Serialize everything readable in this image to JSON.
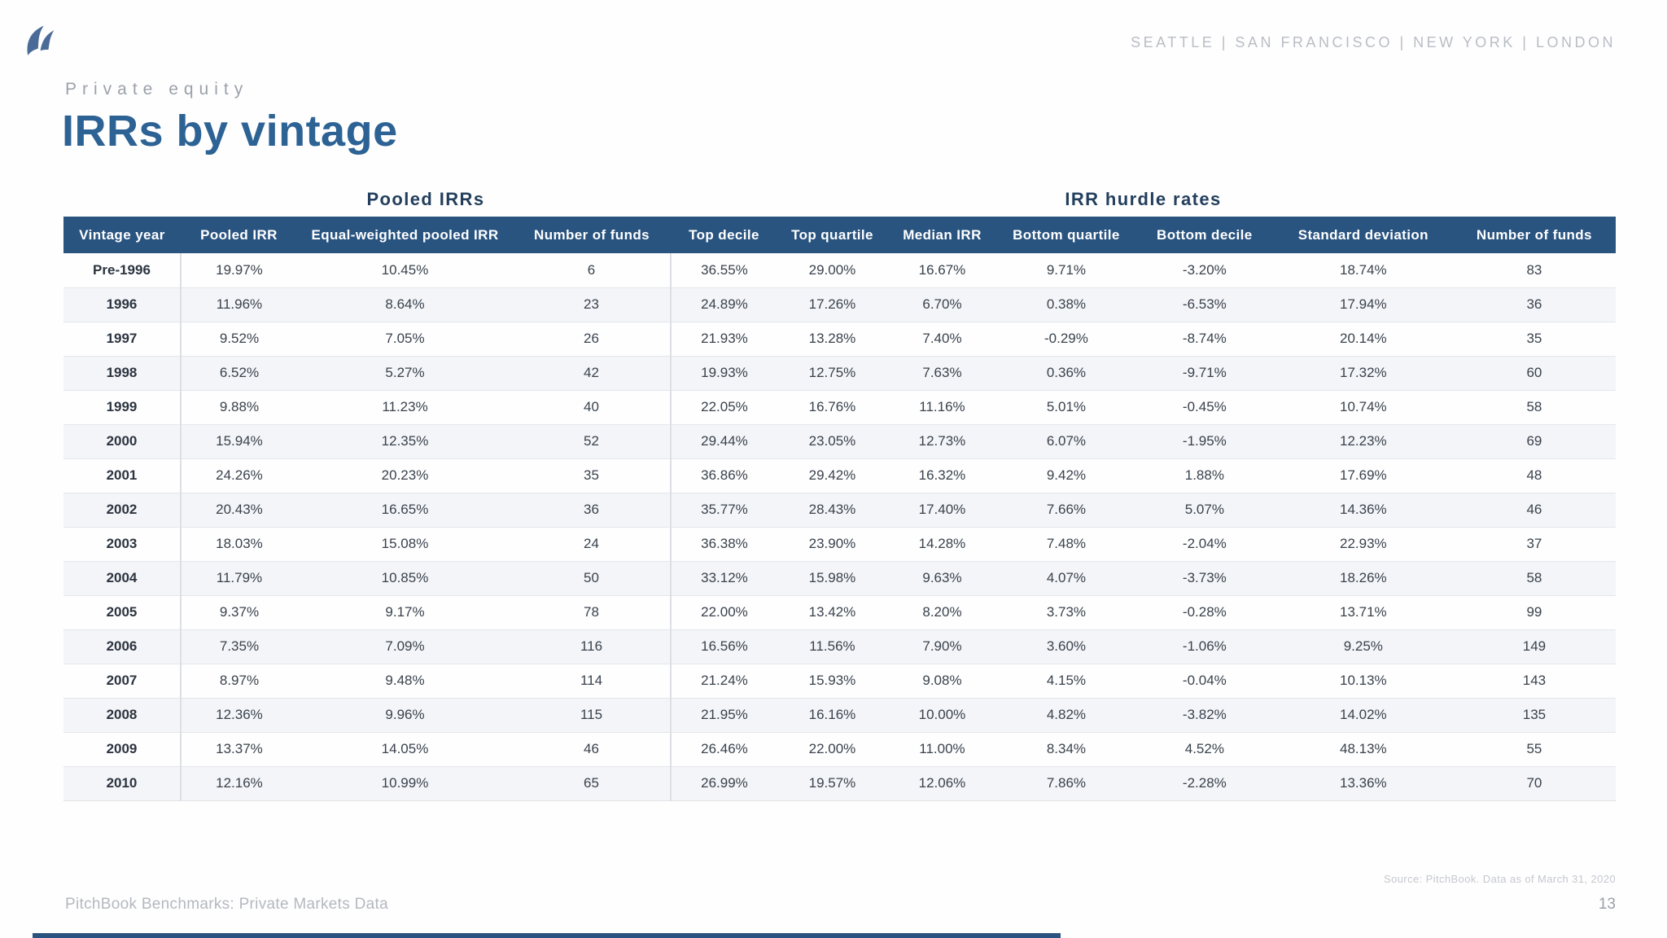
{
  "brand": {
    "logo": "pitchbook-sail-logo",
    "cities": [
      "SEATTLE",
      "SAN FRANCISCO",
      "NEW YORK",
      "LONDON"
    ],
    "city_separator": "|"
  },
  "eyebrow": "Private equity",
  "title": "IRRs by vintage",
  "table": {
    "group_headers": [
      {
        "label": "Pooled IRRs"
      },
      {
        "label": "IRR hurdle rates"
      }
    ],
    "columns": [
      "Vintage year",
      "Pooled IRR",
      "Equal-weighted pooled IRR",
      "Number of funds",
      "Top decile",
      "Top quartile",
      "Median IRR",
      "Bottom quartile",
      "Bottom decile",
      "Standard deviation",
      "Number of funds"
    ],
    "rows": [
      [
        "Pre-1996",
        "19.97%",
        "10.45%",
        "6",
        "36.55%",
        "29.00%",
        "16.67%",
        "9.71%",
        "-3.20%",
        "18.74%",
        "83"
      ],
      [
        "1996",
        "11.96%",
        "8.64%",
        "23",
        "24.89%",
        "17.26%",
        "6.70%",
        "0.38%",
        "-6.53%",
        "17.94%",
        "36"
      ],
      [
        "1997",
        "9.52%",
        "7.05%",
        "26",
        "21.93%",
        "13.28%",
        "7.40%",
        "-0.29%",
        "-8.74%",
        "20.14%",
        "35"
      ],
      [
        "1998",
        "6.52%",
        "5.27%",
        "42",
        "19.93%",
        "12.75%",
        "7.63%",
        "0.36%",
        "-9.71%",
        "17.32%",
        "60"
      ],
      [
        "1999",
        "9.88%",
        "11.23%",
        "40",
        "22.05%",
        "16.76%",
        "11.16%",
        "5.01%",
        "-0.45%",
        "10.74%",
        "58"
      ],
      [
        "2000",
        "15.94%",
        "12.35%",
        "52",
        "29.44%",
        "23.05%",
        "12.73%",
        "6.07%",
        "-1.95%",
        "12.23%",
        "69"
      ],
      [
        "2001",
        "24.26%",
        "20.23%",
        "35",
        "36.86%",
        "29.42%",
        "16.32%",
        "9.42%",
        "1.88%",
        "17.69%",
        "48"
      ],
      [
        "2002",
        "20.43%",
        "16.65%",
        "36",
        "35.77%",
        "28.43%",
        "17.40%",
        "7.66%",
        "5.07%",
        "14.36%",
        "46"
      ],
      [
        "2003",
        "18.03%",
        "15.08%",
        "24",
        "36.38%",
        "23.90%",
        "14.28%",
        "7.48%",
        "-2.04%",
        "22.93%",
        "37"
      ],
      [
        "2004",
        "11.79%",
        "10.85%",
        "50",
        "33.12%",
        "15.98%",
        "9.63%",
        "4.07%",
        "-3.73%",
        "18.26%",
        "58"
      ],
      [
        "2005",
        "9.37%",
        "9.17%",
        "78",
        "22.00%",
        "13.42%",
        "8.20%",
        "3.73%",
        "-0.28%",
        "13.71%",
        "99"
      ],
      [
        "2006",
        "7.35%",
        "7.09%",
        "116",
        "16.56%",
        "11.56%",
        "7.90%",
        "3.60%",
        "-1.06%",
        "9.25%",
        "149"
      ],
      [
        "2007",
        "8.97%",
        "9.48%",
        "114",
        "21.24%",
        "15.93%",
        "9.08%",
        "4.15%",
        "-0.04%",
        "10.13%",
        "143"
      ],
      [
        "2008",
        "12.36%",
        "9.96%",
        "115",
        "21.95%",
        "16.16%",
        "10.00%",
        "4.82%",
        "-3.82%",
        "14.02%",
        "135"
      ],
      [
        "2009",
        "13.37%",
        "14.05%",
        "46",
        "26.46%",
        "22.00%",
        "11.00%",
        "8.34%",
        "4.52%",
        "48.13%",
        "55"
      ],
      [
        "2010",
        "12.16%",
        "10.99%",
        "65",
        "26.99%",
        "19.57%",
        "12.06%",
        "7.86%",
        "-2.28%",
        "13.36%",
        "70"
      ]
    ]
  },
  "footer": {
    "source": "Source: PitchBook. Data as of March 31, 2020",
    "left_text": "PitchBook Benchmarks: Private Markets Data",
    "page_number": "13"
  },
  "colors": {
    "header_bar": "#2a5480",
    "title_blue": "#2d6295",
    "group_title_navy": "#233f5d",
    "stripe_gray": "#f4f5f8",
    "muted_gray": "#b4b8bf",
    "logo_blue": "#4a6b97"
  }
}
